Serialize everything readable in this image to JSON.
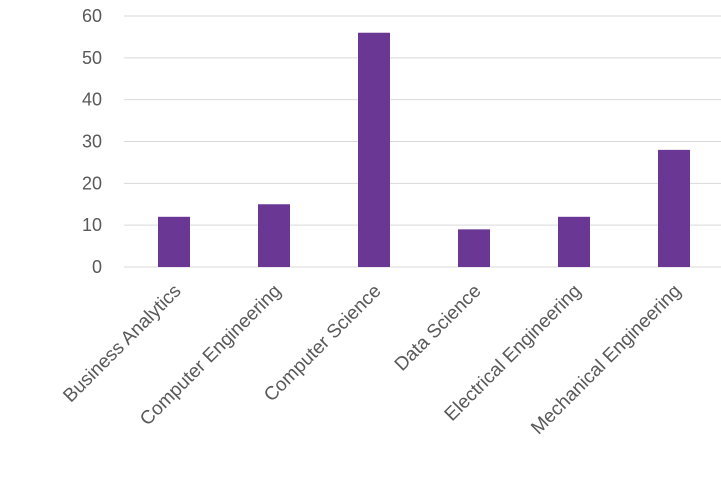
{
  "chart_data": {
    "type": "bar",
    "categories": [
      "Business Analytics",
      "Computer Engineering",
      "Computer Science",
      "Data Science",
      "Electrical Engineering",
      "Mechanical Engineering"
    ],
    "values": [
      12,
      15,
      56,
      9,
      12,
      28
    ],
    "ylim": [
      0,
      60
    ],
    "yticks": [
      "0",
      "10",
      "20",
      "30",
      "40",
      "50",
      "60"
    ],
    "grid": true,
    "bar_color": "#6b3795",
    "grid_color": "#d9d9d9",
    "label_color": "#595959"
  }
}
